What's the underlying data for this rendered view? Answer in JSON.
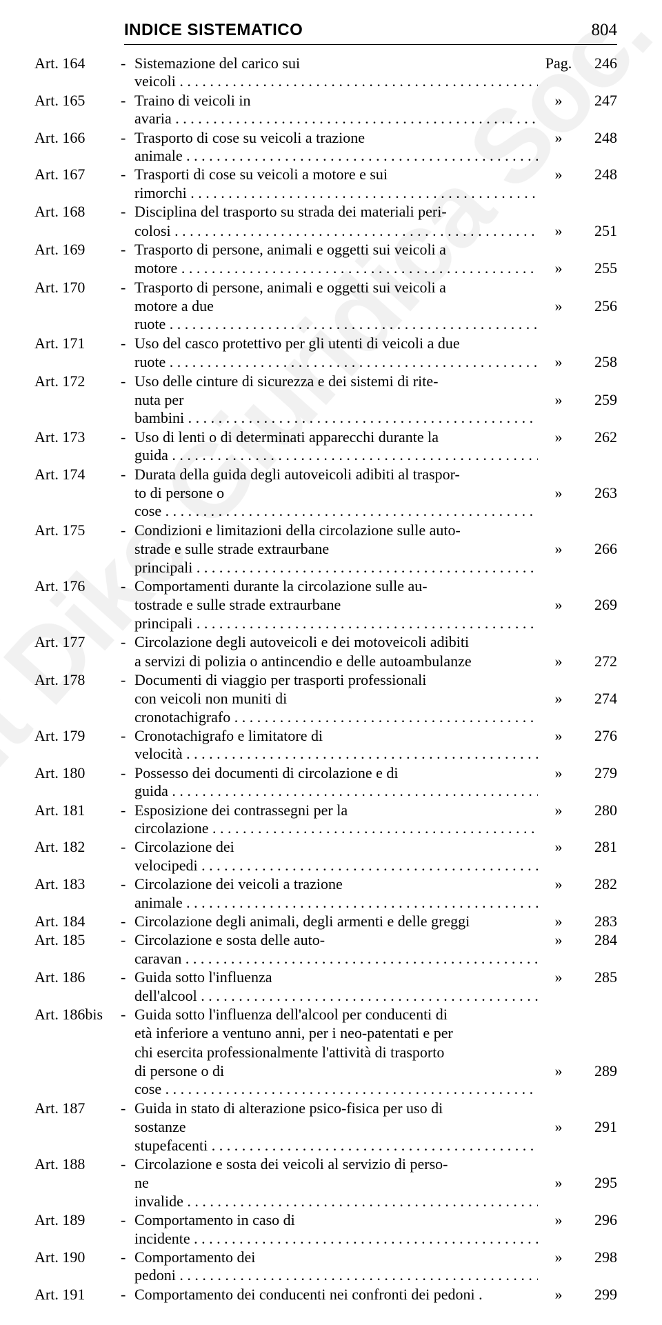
{
  "header": {
    "title": "INDICE SISTEMATICO",
    "page": "804"
  },
  "watermark": "Copyright Dike Giuridica Soc. Coop.",
  "rows": [
    {
      "art": "Art. 164",
      "lines": [
        "Sistemazione del carico sui veicoli"
      ],
      "mark": "Pag.",
      "page": "246"
    },
    {
      "art": "Art. 165",
      "lines": [
        "Traino di veicoli in avaria"
      ],
      "mark": "»",
      "page": "247"
    },
    {
      "art": "Art. 166",
      "lines": [
        "Trasporto di cose su veicoli a trazione animale"
      ],
      "mark": "»",
      "page": "248"
    },
    {
      "art": "Art. 167",
      "lines": [
        "Trasporti di cose su veicoli a motore e sui rimorchi"
      ],
      "mark": "»",
      "page": "248"
    },
    {
      "art": "Art. 168",
      "lines": [
        "Disciplina del trasporto su strada dei materiali peri-",
        "colosi"
      ],
      "mark": "»",
      "page": "251"
    },
    {
      "art": "Art. 169",
      "lines": [
        "Trasporto di persone, animali e oggetti sui veicoli a",
        "motore"
      ],
      "mark": "»",
      "page": "255"
    },
    {
      "art": "Art. 170",
      "lines": [
        "Trasporto di persone, animali e oggetti sui veicoli a",
        "motore a due ruote"
      ],
      "mark": "»",
      "page": "256"
    },
    {
      "art": "Art. 171",
      "lines": [
        "Uso del casco protettivo per gli utenti di veicoli a due",
        "ruote"
      ],
      "mark": "»",
      "page": "258"
    },
    {
      "art": "Art. 172",
      "lines": [
        "Uso delle cinture di sicurezza e dei sistemi di rite-",
        "nuta per bambini"
      ],
      "mark": "»",
      "page": "259"
    },
    {
      "art": "Art. 173",
      "lines": [
        "Uso di lenti o di determinati apparecchi durante la guida"
      ],
      "mark": "»",
      "page": "262"
    },
    {
      "art": "Art. 174",
      "lines": [
        "Durata della guida degli autoveicoli adibiti al traspor-",
        "to di persone o cose"
      ],
      "mark": "»",
      "page": "263"
    },
    {
      "art": "Art. 175",
      "lines": [
        "Condizioni e limitazioni della circolazione sulle auto-",
        "strade e sulle strade extraurbane principali"
      ],
      "mark": "»",
      "page": "266"
    },
    {
      "art": "Art. 176",
      "lines": [
        "Comportamenti durante la circolazione sulle au-",
        "tostrade e sulle strade extraurbane principali"
      ],
      "mark": "»",
      "page": "269"
    },
    {
      "art": "Art. 177",
      "lines": [
        "Circolazione degli autoveicoli e dei motoveicoli adibiti",
        "a servizi di polizia o antincendio e delle autoambulanze"
      ],
      "mark": "»",
      "page": "272",
      "nodots": true
    },
    {
      "art": "Art. 178",
      "lines": [
        "Documenti di viaggio per trasporti professionali",
        "con veicoli non muniti di cronotachigrafo"
      ],
      "mark": "»",
      "page": "274"
    },
    {
      "art": "Art. 179",
      "lines": [
        "Cronotachigrafo e limitatore di velocità"
      ],
      "mark": "»",
      "page": "276"
    },
    {
      "art": "Art. 180",
      "lines": [
        "Possesso dei documenti di circolazione e di guida"
      ],
      "mark": "»",
      "page": "279"
    },
    {
      "art": "Art. 181",
      "lines": [
        "Esposizione dei contrassegni per la circolazione"
      ],
      "mark": "»",
      "page": "280"
    },
    {
      "art": "Art. 182",
      "lines": [
        "Circolazione dei velocipedi"
      ],
      "mark": "»",
      "page": "281"
    },
    {
      "art": "Art. 183",
      "lines": [
        "Circolazione dei veicoli a trazione animale"
      ],
      "mark": "»",
      "page": "282"
    },
    {
      "art": "Art. 184",
      "lines": [
        "Circolazione degli animali, degli armenti e delle greggi"
      ],
      "mark": "»",
      "page": "283",
      "nodots": true
    },
    {
      "art": "Art. 185",
      "lines": [
        "Circolazione e sosta delle auto-caravan"
      ],
      "mark": "»",
      "page": "284"
    },
    {
      "art": "Art. 186",
      "lines": [
        "Guida sotto l'influenza dell'alcool"
      ],
      "mark": "»",
      "page": "285"
    },
    {
      "art": "Art. 186bis",
      "lines": [
        "Guida sotto l'influenza dell'alcool per conducenti di",
        "età inferiore a ventuno anni, per i neo-patentati e per",
        "chi esercita professionalmente l'attività di trasporto",
        "di persone o di cose"
      ],
      "mark": "»",
      "page": "289"
    },
    {
      "art": "Art. 187",
      "lines": [
        "Guida in stato di alterazione psico-fisica per uso di",
        "sostanze stupefacenti"
      ],
      "mark": "»",
      "page": "291"
    },
    {
      "art": "Art. 188",
      "lines": [
        "Circolazione e sosta dei veicoli al servizio di perso-",
        "ne invalide"
      ],
      "mark": "»",
      "page": "295"
    },
    {
      "art": "Art. 189",
      "lines": [
        "Comportamento in caso di incidente"
      ],
      "mark": "»",
      "page": "296"
    },
    {
      "art": "Art. 190",
      "lines": [
        "Comportamento dei pedoni"
      ],
      "mark": "»",
      "page": "298"
    },
    {
      "art": "Art. 191",
      "lines": [
        "Comportamento dei conducenti nei confronti dei pedoni"
      ],
      "mark": "»",
      "page": "299",
      "nodots": true,
      "period": true
    }
  ]
}
